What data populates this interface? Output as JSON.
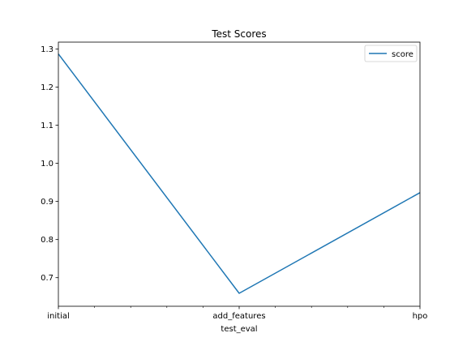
{
  "chart_data": {
    "type": "line",
    "title": "Test Scores",
    "xlabel": "test_eval",
    "ylabel": "",
    "categories": [
      "initial",
      "add_features",
      "hpo"
    ],
    "series": [
      {
        "name": "score",
        "values": [
          1.287,
          0.659,
          0.923
        ],
        "color": "#1f77b4"
      }
    ],
    "ylim": [
      0.625,
      1.318
    ],
    "yticks": [
      0.7,
      0.8,
      0.9,
      1.0,
      1.1,
      1.2,
      1.3
    ],
    "ytick_labels": [
      "0.7",
      "0.8",
      "0.9",
      "1.0",
      "1.1",
      "1.2",
      "1.3"
    ],
    "minor_xticks": 4,
    "grid": false,
    "legend": "upper right"
  }
}
